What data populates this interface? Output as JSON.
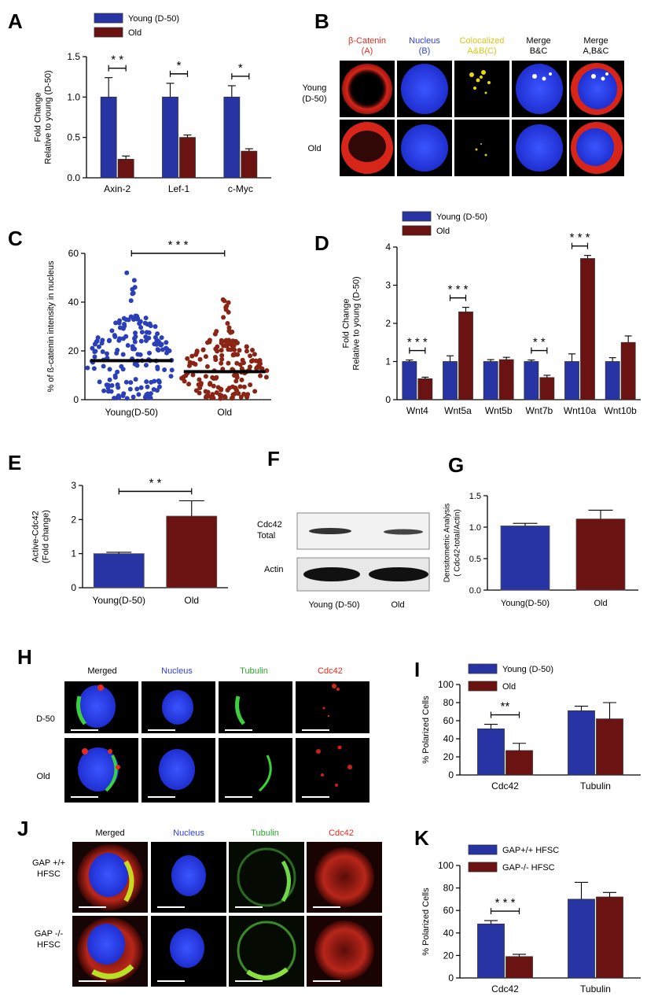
{
  "panel_letters": {
    "A": "A",
    "B": "B",
    "C": "C",
    "D": "D",
    "E": "E",
    "F": "F",
    "G": "G",
    "H": "H",
    "I": "I",
    "J": "J",
    "K": "K"
  },
  "colors": {
    "young": "#2834a3",
    "old": "#6b1212",
    "scatter_young": "#2a3fb8",
    "scatter_old": "#8a2414",
    "red": "#e62b1e",
    "blue": "#2c3fe0",
    "yellow": "#d9c812",
    "green": "#2ea82e",
    "black": "#000000"
  },
  "chart_data": [
    {
      "id": "A",
      "type": "bar",
      "legend": [
        "Young (D-50)",
        "Old"
      ],
      "ylabel_lines": [
        "Fold Change",
        "Relative to young (D-50)"
      ],
      "categories": [
        "Axin-2",
        "Lef-1",
        "c-Myc"
      ],
      "series": [
        {
          "name": "Young (D-50)",
          "values": [
            1.0,
            1.0,
            1.0
          ],
          "errors": [
            0.24,
            0.17,
            0.14
          ]
        },
        {
          "name": "Old",
          "values": [
            0.23,
            0.5,
            0.33
          ],
          "errors": [
            0.04,
            0.03,
            0.03
          ]
        }
      ],
      "ylim": [
        0,
        1.5
      ],
      "yticks": [
        0.0,
        0.5,
        1.0,
        1.5
      ],
      "ytick_labels": [
        "0.0",
        "0.5",
        "1.0",
        "1.5"
      ],
      "significance": [
        "* *",
        "*",
        "*"
      ]
    },
    {
      "id": "C",
      "type": "scatter",
      "ylabel": "% of ß-catenin intensity in nucleus",
      "categories": [
        "Young(D-50)",
        "Old"
      ],
      "means": [
        16,
        11.5
      ],
      "max_values": [
        52,
        41
      ],
      "n_points": [
        165,
        175
      ],
      "ylim": [
        0,
        60
      ],
      "yticks": [
        0,
        20,
        40,
        60
      ],
      "ytick_labels": [
        "0",
        "20",
        "40",
        "60"
      ],
      "significance": "* * *"
    },
    {
      "id": "D",
      "type": "bar",
      "legend": [
        "Young (D-50)",
        "Old"
      ],
      "ylabel_lines": [
        "Fold Change",
        "Relative to young (D-50)"
      ],
      "categories": [
        "Wnt4",
        "Wnt5a",
        "Wnt5b",
        "Wnt7b",
        "Wnt10a",
        "Wnt10b"
      ],
      "series": [
        {
          "name": "Young (D-50)",
          "values": [
            1.0,
            1.0,
            1.0,
            1.0,
            1.0,
            1.0
          ],
          "errors": [
            0.04,
            0.15,
            0.05,
            0.04,
            0.2,
            0.1
          ]
        },
        {
          "name": "Old",
          "values": [
            0.55,
            2.3,
            1.05,
            0.58,
            3.7,
            1.5
          ],
          "errors": [
            0.04,
            0.12,
            0.06,
            0.06,
            0.08,
            0.17
          ]
        }
      ],
      "ylim": [
        0,
        4
      ],
      "yticks": [
        0,
        1,
        2,
        3,
        4
      ],
      "ytick_labels": [
        "0",
        "1",
        "2",
        "3",
        "4"
      ],
      "significance": [
        "* * *",
        "* * *",
        "",
        "* *",
        "* * *",
        ""
      ]
    },
    {
      "id": "E",
      "type": "bar",
      "ylabel_lines": [
        "Active-Cdc42",
        "(Fold change)"
      ],
      "categories": [
        "Young(D-50)",
        "Old"
      ],
      "values": [
        1.0,
        2.1
      ],
      "errors": [
        0.04,
        0.45
      ],
      "ylim": [
        0,
        3
      ],
      "yticks": [
        0,
        1,
        2,
        3
      ],
      "ytick_labels": [
        "0",
        "1",
        "2",
        "3"
      ],
      "significance": "* *"
    },
    {
      "id": "G",
      "type": "bar",
      "ylabel_lines": [
        "Densitometric Analysis",
        "( Cdc42-total/Actin)"
      ],
      "categories": [
        "Young(D-50)",
        "Old"
      ],
      "values": [
        1.02,
        1.13
      ],
      "errors": [
        0.04,
        0.14
      ],
      "ylim": [
        0,
        1.5
      ],
      "yticks": [
        0.0,
        0.5,
        1.0,
        1.5
      ],
      "ytick_labels": [
        "0.0",
        "0.5",
        "1.0",
        "1.5"
      ]
    },
    {
      "id": "I",
      "type": "bar",
      "legend": [
        "Young (D-50)",
        "Old"
      ],
      "ylabel": "% Polarized Cells",
      "categories": [
        "Cdc42",
        "Tubulin"
      ],
      "series": [
        {
          "name": "Young (D-50)",
          "values": [
            51,
            71
          ],
          "errors": [
            5,
            5
          ]
        },
        {
          "name": "Old",
          "values": [
            27,
            62
          ],
          "errors": [
            8,
            18
          ]
        }
      ],
      "ylim": [
        0,
        100
      ],
      "yticks": [
        0,
        20,
        40,
        60,
        80,
        100
      ],
      "ytick_labels": [
        "0",
        "20",
        "40",
        "60",
        "80",
        "100"
      ],
      "significance": [
        "**",
        ""
      ]
    },
    {
      "id": "K",
      "type": "bar",
      "legend": [
        "GAP+/+ HFSC",
        "GAP-/- HFSC"
      ],
      "ylabel": "% Polarized Cells",
      "categories": [
        "Cdc42",
        "Tubulin"
      ],
      "series": [
        {
          "name": "GAP+/+ HFSC",
          "values": [
            48,
            70
          ],
          "errors": [
            3,
            15
          ]
        },
        {
          "name": "GAP-/- HFSC",
          "values": [
            19,
            72
          ],
          "errors": [
            2,
            4
          ]
        }
      ],
      "ylim": [
        0,
        100
      ],
      "yticks": [
        0,
        20,
        40,
        60,
        80,
        100
      ],
      "ytick_labels": [
        "0",
        "20",
        "40",
        "60",
        "80",
        "100"
      ],
      "significance": [
        "* * *",
        ""
      ]
    }
  ],
  "panel_b": {
    "columns": [
      [
        "β-Catenin",
        "(A)"
      ],
      [
        "Nucleus",
        "(B)"
      ],
      [
        "Colocalized",
        "A&B(C)"
      ],
      [
        "Merge",
        "B&C"
      ],
      [
        "Merge",
        "A,B&C"
      ]
    ],
    "rows": [
      [
        "Young",
        "(D-50)"
      ],
      [
        "Old"
      ]
    ]
  },
  "panel_f": {
    "bands": [
      [
        "Cdc42",
        "Total"
      ],
      [
        "Actin"
      ]
    ],
    "lanes": [
      "Young (D-50)",
      "Old"
    ]
  },
  "panel_h": {
    "columns": [
      "Merged",
      "Nucleus",
      "Tubulin",
      "Cdc42"
    ],
    "rows": [
      "D-50",
      "Old"
    ]
  },
  "panel_j": {
    "columns": [
      "Merged",
      "Nucleus",
      "Tubulin",
      "Cdc42"
    ],
    "rows": [
      [
        "GAP +/+",
        "HFSC"
      ],
      [
        "GAP -/-",
        "HFSC"
      ]
    ]
  }
}
